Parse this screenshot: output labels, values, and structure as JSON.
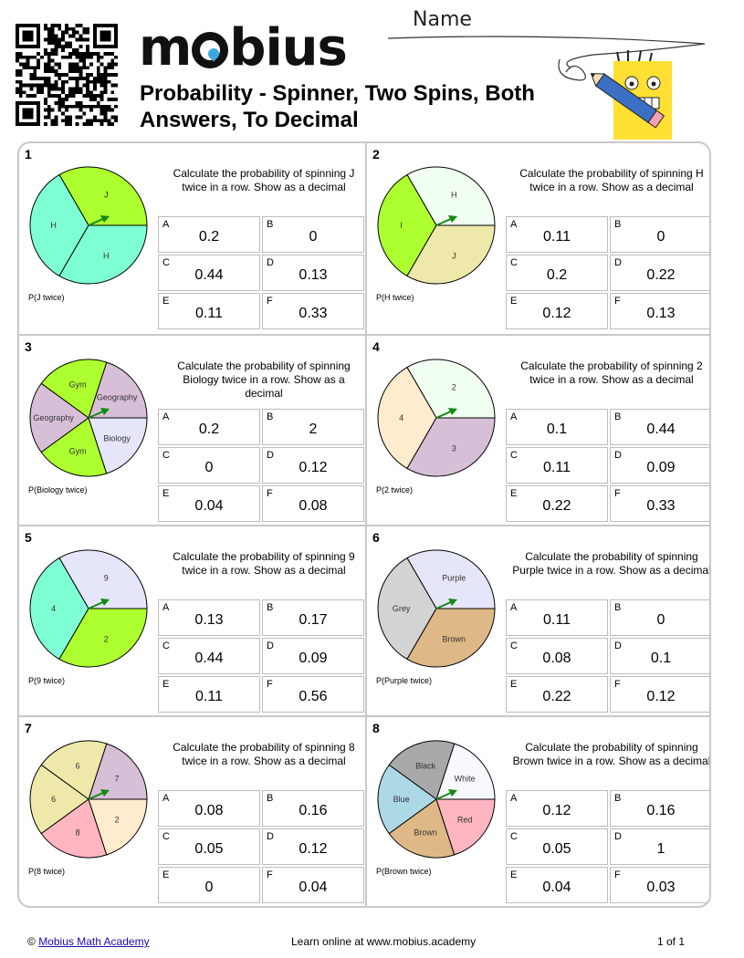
{
  "header": {
    "brand": "mobius",
    "title": "Probability - Spinner, Two Spins, Both Answers, To Decimal",
    "name_label": "Name"
  },
  "questions": [
    {
      "num": "1",
      "prompt": "Calculate the probability of spinning J twice in a row. Show as a decimal",
      "p_label": "P(J twice)",
      "sectors": [
        {
          "label": "J",
          "color": "#adff2f",
          "fraction": 0.3333
        },
        {
          "label": "H",
          "color": "#7fffd4",
          "fraction": 0.3333
        },
        {
          "label": "H",
          "color": "#7fffd4",
          "fraction": 0.3334
        }
      ],
      "answers": [
        {
          "letter": "A",
          "value": "0.2"
        },
        {
          "letter": "B",
          "value": "0"
        },
        {
          "letter": "C",
          "value": "0.44"
        },
        {
          "letter": "D",
          "value": "0.13"
        },
        {
          "letter": "E",
          "value": "0.11"
        },
        {
          "letter": "F",
          "value": "0.33"
        }
      ]
    },
    {
      "num": "2",
      "prompt": "Calculate the probability of spinning H twice in a row. Show as a decimal",
      "p_label": "P(H twice)",
      "sectors": [
        {
          "label": "H",
          "color": "#f0fff0",
          "fraction": 0.3333
        },
        {
          "label": "I",
          "color": "#adff2f",
          "fraction": 0.3333
        },
        {
          "label": "J",
          "color": "#eee8aa",
          "fraction": 0.3334
        }
      ],
      "answers": [
        {
          "letter": "A",
          "value": "0.11"
        },
        {
          "letter": "B",
          "value": "0"
        },
        {
          "letter": "C",
          "value": "0.2"
        },
        {
          "letter": "D",
          "value": "0.22"
        },
        {
          "letter": "E",
          "value": "0.12"
        },
        {
          "letter": "F",
          "value": "0.13"
        }
      ]
    },
    {
      "num": "3",
      "prompt": "Calculate the probability of spinning Biology twice in a row. Show as a decimal",
      "p_label": "P(Biology twice)",
      "sectors": [
        {
          "label": "Geography",
          "color": "#d8bfd8",
          "fraction": 0.2
        },
        {
          "label": "Gym",
          "color": "#adff2f",
          "fraction": 0.2
        },
        {
          "label": "Geography",
          "color": "#d8bfd8",
          "fraction": 0.2
        },
        {
          "label": "Gym",
          "color": "#adff2f",
          "fraction": 0.2
        },
        {
          "label": "Biology",
          "color": "#e6e6fa",
          "fraction": 0.2
        }
      ],
      "answers": [
        {
          "letter": "A",
          "value": "0.2"
        },
        {
          "letter": "B",
          "value": "2"
        },
        {
          "letter": "C",
          "value": "0"
        },
        {
          "letter": "D",
          "value": "0.12"
        },
        {
          "letter": "E",
          "value": "0.04"
        },
        {
          "letter": "F",
          "value": "0.08"
        }
      ]
    },
    {
      "num": "4",
      "prompt": "Calculate the probability of spinning 2 twice in a row. Show as a decimal",
      "p_label": "P(2 twice)",
      "sectors": [
        {
          "label": "2",
          "color": "#f0fff0",
          "fraction": 0.3333
        },
        {
          "label": "4",
          "color": "#ffebcd",
          "fraction": 0.3333
        },
        {
          "label": "3",
          "color": "#d8bfd8",
          "fraction": 0.3334
        }
      ],
      "answers": [
        {
          "letter": "A",
          "value": "0.1"
        },
        {
          "letter": "B",
          "value": "0.44"
        },
        {
          "letter": "C",
          "value": "0.11"
        },
        {
          "letter": "D",
          "value": "0.09"
        },
        {
          "letter": "E",
          "value": "0.22"
        },
        {
          "letter": "F",
          "value": "0.33"
        }
      ]
    },
    {
      "num": "5",
      "prompt": "Calculate the probability of spinning 9 twice in a row. Show as a decimal",
      "p_label": "P(9 twice)",
      "sectors": [
        {
          "label": "9",
          "color": "#e6e6fa",
          "fraction": 0.3333
        },
        {
          "label": "4",
          "color": "#7fffd4",
          "fraction": 0.3333
        },
        {
          "label": "2",
          "color": "#adff2f",
          "fraction": 0.3334
        }
      ],
      "answers": [
        {
          "letter": "A",
          "value": "0.13"
        },
        {
          "letter": "B",
          "value": "0.17"
        },
        {
          "letter": "C",
          "value": "0.44"
        },
        {
          "letter": "D",
          "value": "0.09"
        },
        {
          "letter": "E",
          "value": "0.11"
        },
        {
          "letter": "F",
          "value": "0.56"
        }
      ]
    },
    {
      "num": "6",
      "prompt": "Calculate the probability of spinning Purple twice in a row. Show as a decimal",
      "p_label": "P(Purple twice)",
      "sectors": [
        {
          "label": "Purple",
          "color": "#e6e6fa",
          "fraction": 0.3333
        },
        {
          "label": "Grey",
          "color": "#d3d3d3",
          "fraction": 0.3333
        },
        {
          "label": "Brown",
          "color": "#deb887",
          "fraction": 0.3334
        }
      ],
      "answers": [
        {
          "letter": "A",
          "value": "0.11"
        },
        {
          "letter": "B",
          "value": "0"
        },
        {
          "letter": "C",
          "value": "0.08"
        },
        {
          "letter": "D",
          "value": "0.1"
        },
        {
          "letter": "E",
          "value": "0.22"
        },
        {
          "letter": "F",
          "value": "0.12"
        }
      ]
    },
    {
      "num": "7",
      "prompt": "Calculate the probability of spinning 8 twice in a row. Show as a decimal",
      "p_label": "P(8 twice)",
      "sectors": [
        {
          "label": "7",
          "color": "#d8bfd8",
          "fraction": 0.2
        },
        {
          "label": "6",
          "color": "#eee8aa",
          "fraction": 0.2
        },
        {
          "label": "6",
          "color": "#eee8aa",
          "fraction": 0.2
        },
        {
          "label": "8",
          "color": "#ffb6c1",
          "fraction": 0.2
        },
        {
          "label": "2",
          "color": "#ffebcd",
          "fraction": 0.2
        }
      ],
      "answers": [
        {
          "letter": "A",
          "value": "0.08"
        },
        {
          "letter": "B",
          "value": "0.16"
        },
        {
          "letter": "C",
          "value": "0.05"
        },
        {
          "letter": "D",
          "value": "0.12"
        },
        {
          "letter": "E",
          "value": "0"
        },
        {
          "letter": "F",
          "value": "0.04"
        }
      ]
    },
    {
      "num": "8",
      "prompt": "Calculate the probability of spinning Brown twice in a row. Show as a decimal",
      "p_label": "P(Brown twice)",
      "sectors": [
        {
          "label": "White",
          "color": "#f8f8ff",
          "fraction": 0.2
        },
        {
          "label": "Black",
          "color": "#a9a9a9",
          "fraction": 0.2
        },
        {
          "label": "Blue",
          "color": "#add8e6",
          "fraction": 0.2
        },
        {
          "label": "Brown",
          "color": "#deb887",
          "fraction": 0.2
        },
        {
          "label": "Red",
          "color": "#ffb6c1",
          "fraction": 0.2
        }
      ],
      "answers": [
        {
          "letter": "A",
          "value": "0.12"
        },
        {
          "letter": "B",
          "value": "0.16"
        },
        {
          "letter": "C",
          "value": "0.05"
        },
        {
          "letter": "D",
          "value": "1"
        },
        {
          "letter": "E",
          "value": "0.04"
        },
        {
          "letter": "F",
          "value": "0.03"
        }
      ]
    }
  ],
  "footer": {
    "copyright": "©",
    "link_text": "Mobius Math Academy",
    "center_text": "Learn online at www.mobius.academy",
    "page": "1 of 1"
  }
}
